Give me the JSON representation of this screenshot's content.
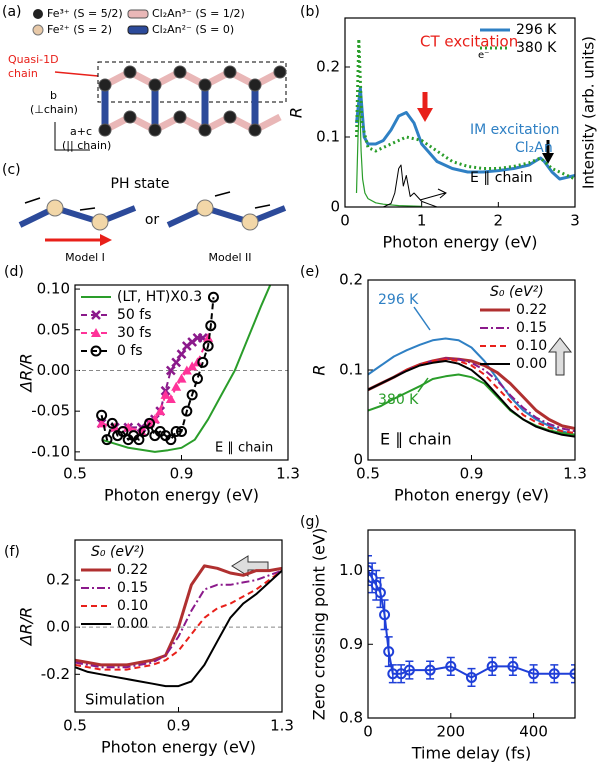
{
  "panels": {
    "a": {
      "label": "(a)",
      "legend": [
        "Fe³⁺ (S = 5/2)",
        "Cl₂An³⁻ (S = 1/2)",
        "Fe²⁺ (S = 2)",
        "Cl₂An²⁻ (S = 0)"
      ],
      "chain_label": [
        "Quasi-1D",
        "chain"
      ],
      "axis_b": "b",
      "axis_b_note": "(⊥chain)",
      "axis_ac": "a+c",
      "axis_ac_note": "(|| chain)"
    },
    "c": {
      "label": "(c)",
      "title": "PH state",
      "or": "or",
      "model_1": "Model I",
      "model_2": "Model II"
    }
  },
  "chart_data": [
    {
      "type": "line",
      "panel": "(b)",
      "xlabel": "Photon energy (eV)",
      "ylabel": "R",
      "y2label": "Intensity (arb. units)",
      "xlim": [
        0,
        3
      ],
      "xticks": [
        0,
        1,
        2,
        3
      ],
      "ylim": [
        0,
        0.27
      ],
      "yticks": [
        0,
        0.1,
        0.2
      ],
      "legend": "upper right",
      "annotations": [
        "CT excitation",
        "e⁻",
        "IM excitation",
        "Cl₂An",
        "E ∥ chain"
      ],
      "series": [
        {
          "color": "#2a9d2a",
          "width": 1.2,
          "x": [
            0.15,
            0.17,
            0.19,
            0.21,
            0.23,
            0.26,
            0.3,
            0.4,
            0.5,
            0.7,
            1.0
          ],
          "values": [
            0.02,
            0.1,
            0.16,
            0.08,
            0.04,
            0.02,
            0.012,
            0.006,
            0.004,
            0.002,
            0.001
          ]
        },
        {
          "color": "#000000",
          "width": 1,
          "x": [
            0.5,
            0.6,
            0.65,
            0.7,
            0.73,
            0.76,
            0.8,
            0.85,
            0.9,
            1.0,
            1.1,
            1.2
          ],
          "values": [
            0,
            0.005,
            0.02,
            0.055,
            0.06,
            0.03,
            0.045,
            0.015,
            0.02,
            0.008,
            0.004,
            0
          ]
        },
        {
          "name": "296 K",
          "color": "#2f80c4",
          "width": 3,
          "x": [
            0.15,
            0.2,
            0.25,
            0.3,
            0.4,
            0.5,
            0.6,
            0.7,
            0.8,
            0.9,
            1.0,
            1.2,
            1.4,
            1.6,
            1.8,
            2.0,
            2.2,
            2.4,
            2.55,
            2.6,
            2.7,
            2.8,
            3.0
          ],
          "values": [
            0.12,
            0.17,
            0.1,
            0.09,
            0.09,
            0.095,
            0.11,
            0.13,
            0.135,
            0.12,
            0.09,
            0.065,
            0.055,
            0.05,
            0.05,
            0.052,
            0.055,
            0.06,
            0.07,
            0.065,
            0.05,
            0.04,
            0.045
          ]
        },
        {
          "name": "380 K",
          "color": "#2a9d2a",
          "width": 3,
          "dash": "dotted",
          "x": [
            0.15,
            0.18,
            0.22,
            0.3,
            0.4,
            0.6,
            0.8,
            1.0,
            1.2,
            1.4,
            1.6,
            1.8,
            2.0,
            2.2,
            2.4,
            2.55,
            2.7,
            3.0
          ],
          "values": [
            0.1,
            0.24,
            0.12,
            0.085,
            0.08,
            0.09,
            0.1,
            0.095,
            0.08,
            0.065,
            0.058,
            0.055,
            0.055,
            0.058,
            0.063,
            0.07,
            0.055,
            0.04
          ]
        }
      ]
    },
    {
      "type": "line",
      "panel": "(d)",
      "xlabel": "Photon energy (eV)",
      "ylabel": "ΔR/R",
      "xlim": [
        0.5,
        1.3
      ],
      "xticks": [
        0.5,
        0.9,
        1.3
      ],
      "ylim": [
        -0.11,
        0.105
      ],
      "yticks": [
        {
          "value": -0.1,
          "label": "-0.10"
        },
        {
          "value": -0.05,
          "label": "-0.05"
        },
        {
          "value": 0,
          "label": "0.00"
        },
        {
          "value": 0.05,
          "label": "0.05"
        },
        {
          "value": 0.1,
          "label": "0.10"
        }
      ],
      "hline": 0,
      "legend": "upper left",
      "annotations": [
        "E ∥ chain"
      ],
      "series": [
        {
          "name": "(LT, HT)X0.3",
          "color": "#2a9d2a",
          "width": 2,
          "x": [
            0.6,
            0.65,
            0.7,
            0.8,
            0.85,
            0.9,
            0.95,
            1.0,
            1.05,
            1.1,
            1.15,
            1.2,
            1.24
          ],
          "values": [
            -0.085,
            -0.09,
            -0.095,
            -0.1,
            -0.098,
            -0.095,
            -0.085,
            -0.06,
            -0.03,
            0.0,
            0.04,
            0.08,
            0.11
          ]
        },
        {
          "name": "50 fs",
          "color": "#8b1a8b",
          "width": 2,
          "dash": "dashed",
          "marker": "x",
          "x": [
            0.6,
            0.65,
            0.7,
            0.75,
            0.78,
            0.8,
            0.82,
            0.84,
            0.86,
            0.88,
            0.9,
            0.92,
            0.94,
            0.96,
            0.98
          ],
          "values": [
            -0.065,
            -0.07,
            -0.07,
            -0.07,
            -0.065,
            -0.06,
            -0.05,
            -0.025,
            0.0,
            0.01,
            0.02,
            0.03,
            0.035,
            0.04,
            0.04
          ]
        },
        {
          "name": "30 fs",
          "color": "#ff3399",
          "width": 2,
          "dash": "dashed",
          "marker": "triangle",
          "x": [
            0.6,
            0.65,
            0.7,
            0.75,
            0.78,
            0.8,
            0.82,
            0.84,
            0.86,
            0.88,
            0.9,
            0.92,
            0.94,
            0.96,
            1.0
          ],
          "values": [
            -0.065,
            -0.07,
            -0.07,
            -0.075,
            -0.065,
            -0.06,
            -0.05,
            -0.03,
            -0.035,
            -0.02,
            -0.01,
            0.0,
            0.005,
            0.01,
            0.04
          ]
        },
        {
          "name": "0 fs",
          "color": "#000000",
          "width": 2,
          "dash": "dashed",
          "marker": "circle",
          "x": [
            0.6,
            0.62,
            0.64,
            0.66,
            0.68,
            0.7,
            0.72,
            0.74,
            0.76,
            0.78,
            0.8,
            0.82,
            0.84,
            0.86,
            0.88,
            0.9,
            0.92,
            0.94,
            0.96,
            0.98,
            1.0,
            1.01,
            1.02
          ],
          "values": [
            -0.055,
            -0.085,
            -0.065,
            -0.08,
            -0.075,
            -0.085,
            -0.08,
            -0.085,
            -0.075,
            -0.065,
            -0.08,
            -0.075,
            -0.08,
            -0.085,
            -0.075,
            -0.075,
            -0.05,
            -0.03,
            -0.01,
            0.01,
            0.03,
            0.055,
            0.09
          ]
        }
      ]
    },
    {
      "type": "line",
      "panel": "(e)",
      "xlabel": "Photon energy (eV)",
      "ylabel": "R",
      "xlim": [
        0.5,
        1.3
      ],
      "xticks": [
        0.5,
        0.9,
        1.3
      ],
      "ylim": [
        0,
        0.2
      ],
      "yticks": [
        0,
        0.1,
        0.2
      ],
      "legend": "upper right",
      "legend_title": "S₀ (eV²)",
      "annotations": [
        "E ∥ chain"
      ],
      "series": [
        {
          "name": "296 K",
          "in_legend": false,
          "color": "#2f80c4",
          "width": 2,
          "x": [
            0.5,
            0.55,
            0.6,
            0.65,
            0.7,
            0.75,
            0.8,
            0.85,
            0.9,
            0.95,
            1.0,
            1.05,
            1.1,
            1.15,
            1.2,
            1.25,
            1.3
          ],
          "values": [
            0.095,
            0.105,
            0.115,
            0.122,
            0.128,
            0.133,
            0.135,
            0.133,
            0.125,
            0.11,
            0.09,
            0.07,
            0.055,
            0.045,
            0.038,
            0.032,
            0.028
          ]
        },
        {
          "name": "380 K",
          "in_legend": false,
          "color": "#2a9d2a",
          "width": 2,
          "x": [
            0.5,
            0.55,
            0.6,
            0.65,
            0.7,
            0.75,
            0.8,
            0.85,
            0.9,
            0.95,
            1.0,
            1.05,
            1.1,
            1.15,
            1.2,
            1.25,
            1.3
          ],
          "values": [
            0.055,
            0.06,
            0.068,
            0.075,
            0.082,
            0.09,
            0.093,
            0.095,
            0.092,
            0.085,
            0.07,
            0.055,
            0.045,
            0.038,
            0.033,
            0.03,
            0.028
          ]
        },
        {
          "name": "0.22",
          "color": "#b03030",
          "width": 3,
          "x": [
            0.5,
            0.55,
            0.6,
            0.65,
            0.7,
            0.75,
            0.8,
            0.85,
            0.9,
            0.95,
            1.0,
            1.05,
            1.1,
            1.15,
            1.2,
            1.25,
            1.3
          ],
          "values": [
            0.078,
            0.085,
            0.092,
            0.1,
            0.106,
            0.11,
            0.113,
            0.112,
            0.11,
            0.105,
            0.097,
            0.085,
            0.07,
            0.055,
            0.045,
            0.038,
            0.035
          ]
        },
        {
          "name": "0.15",
          "color": "#8b1a8b",
          "width": 2,
          "dash": "dashdot",
          "x": [
            0.5,
            0.55,
            0.6,
            0.65,
            0.7,
            0.75,
            0.8,
            0.85,
            0.9,
            0.95,
            1.0,
            1.05,
            1.1,
            1.15,
            1.2,
            1.25,
            1.3
          ],
          "values": [
            0.078,
            0.085,
            0.092,
            0.1,
            0.106,
            0.11,
            0.113,
            0.112,
            0.108,
            0.1,
            0.088,
            0.072,
            0.058,
            0.047,
            0.04,
            0.035,
            0.032
          ]
        },
        {
          "name": "0.10",
          "color": "#e8201a",
          "width": 2,
          "dash": "dashed",
          "x": [
            0.5,
            0.55,
            0.6,
            0.65,
            0.7,
            0.75,
            0.8,
            0.85,
            0.9,
            0.95,
            1.0,
            1.05,
            1.1,
            1.15,
            1.2,
            1.25,
            1.3
          ],
          "values": [
            0.078,
            0.085,
            0.092,
            0.1,
            0.106,
            0.11,
            0.112,
            0.11,
            0.105,
            0.095,
            0.08,
            0.065,
            0.05,
            0.042,
            0.036,
            0.032,
            0.03
          ]
        },
        {
          "name": "0.00",
          "color": "#000000",
          "width": 2,
          "x": [
            0.5,
            0.55,
            0.6,
            0.65,
            0.7,
            0.75,
            0.8,
            0.85,
            0.9,
            0.95,
            1.0,
            1.05,
            1.1,
            1.15,
            1.2,
            1.25,
            1.3
          ],
          "values": [
            0.078,
            0.085,
            0.092,
            0.099,
            0.105,
            0.108,
            0.11,
            0.107,
            0.1,
            0.088,
            0.072,
            0.056,
            0.045,
            0.037,
            0.032,
            0.028,
            0.026
          ]
        }
      ]
    },
    {
      "type": "line",
      "panel": "(f)",
      "xlabel": "Photon energy (eV)",
      "ylabel": "ΔR/R",
      "xlim": [
        0.5,
        1.3
      ],
      "xticks": [
        0.5,
        0.9,
        1.3
      ],
      "ylim": [
        -0.36,
        0.37
      ],
      "yticks": [
        -0.2,
        {
          "value": 0,
          "label": "0.0"
        },
        0.2
      ],
      "hline": 0,
      "legend": "upper left",
      "legend_title": "S₀ (eV²)",
      "annotations": [
        "Simulation"
      ],
      "series": [
        {
          "name": "0.22",
          "color": "#b03030",
          "width": 3,
          "x": [
            0.5,
            0.55,
            0.6,
            0.65,
            0.7,
            0.75,
            0.8,
            0.85,
            0.9,
            0.95,
            1.0,
            1.05,
            1.1,
            1.15,
            1.2,
            1.25,
            1.3
          ],
          "values": [
            -0.14,
            -0.15,
            -0.16,
            -0.16,
            -0.16,
            -0.15,
            -0.14,
            -0.12,
            0.0,
            0.18,
            0.26,
            0.25,
            0.23,
            0.22,
            0.24,
            0.24,
            0.25
          ]
        },
        {
          "name": "0.15",
          "color": "#8b1a8b",
          "width": 2,
          "dash": "dashdot",
          "x": [
            0.5,
            0.55,
            0.6,
            0.65,
            0.7,
            0.75,
            0.8,
            0.85,
            0.9,
            0.95,
            1.0,
            1.05,
            1.1,
            1.15,
            1.2,
            1.25,
            1.3
          ],
          "values": [
            -0.15,
            -0.16,
            -0.17,
            -0.17,
            -0.17,
            -0.16,
            -0.15,
            -0.12,
            -0.04,
            0.07,
            0.16,
            0.18,
            0.18,
            0.19,
            0.2,
            0.22,
            0.24
          ]
        },
        {
          "name": "0.10",
          "color": "#e8201a",
          "width": 2,
          "dash": "dashed",
          "x": [
            0.5,
            0.55,
            0.6,
            0.65,
            0.7,
            0.75,
            0.8,
            0.85,
            0.9,
            0.95,
            1.0,
            1.05,
            1.1,
            1.15,
            1.2,
            1.25,
            1.3
          ],
          "values": [
            -0.16,
            -0.17,
            -0.18,
            -0.18,
            -0.18,
            -0.17,
            -0.16,
            -0.14,
            -0.1,
            -0.03,
            0.04,
            0.08,
            0.1,
            0.13,
            0.16,
            0.2,
            0.24
          ]
        },
        {
          "name": "0.00",
          "color": "#000000",
          "width": 2,
          "x": [
            0.5,
            0.55,
            0.6,
            0.65,
            0.7,
            0.75,
            0.8,
            0.85,
            0.9,
            0.95,
            1.0,
            1.05,
            1.1,
            1.15,
            1.2,
            1.25,
            1.3
          ],
          "values": [
            -0.17,
            -0.19,
            -0.2,
            -0.21,
            -0.22,
            -0.23,
            -0.24,
            -0.25,
            -0.25,
            -0.23,
            -0.16,
            -0.06,
            0.04,
            0.1,
            0.14,
            0.19,
            0.24
          ]
        }
      ]
    },
    {
      "type": "line",
      "panel": "(g)",
      "xlabel": "Time delay (fs)",
      "ylabel": "Zero crossing point (eV)",
      "xlim": [
        0,
        500
      ],
      "xticks": [
        0,
        200,
        400
      ],
      "ylim": [
        0.8,
        1.055
      ],
      "yticks": [
        0.8,
        0.9,
        {
          "value": 1,
          "label": "1.0"
        }
      ],
      "series": [
        {
          "color": "#1f3fd8",
          "width": 2,
          "marker": "circle",
          "x": [
            0,
            10,
            20,
            30,
            40,
            50,
            60,
            80,
            100,
            150,
            200,
            250,
            300,
            350,
            400,
            450,
            500
          ],
          "values": [
            1.0,
            0.99,
            0.98,
            0.97,
            0.94,
            0.89,
            0.86,
            0.86,
            0.865,
            0.865,
            0.87,
            0.855,
            0.87,
            0.87,
            0.86,
            0.86,
            0.86
          ],
          "errors": [
            0.02,
            0.02,
            0.02,
            0.02,
            0.02,
            0.02,
            0.012,
            0.012,
            0.012,
            0.012,
            0.012,
            0.012,
            0.012,
            0.012,
            0.012,
            0.012,
            0.012
          ]
        }
      ]
    }
  ]
}
